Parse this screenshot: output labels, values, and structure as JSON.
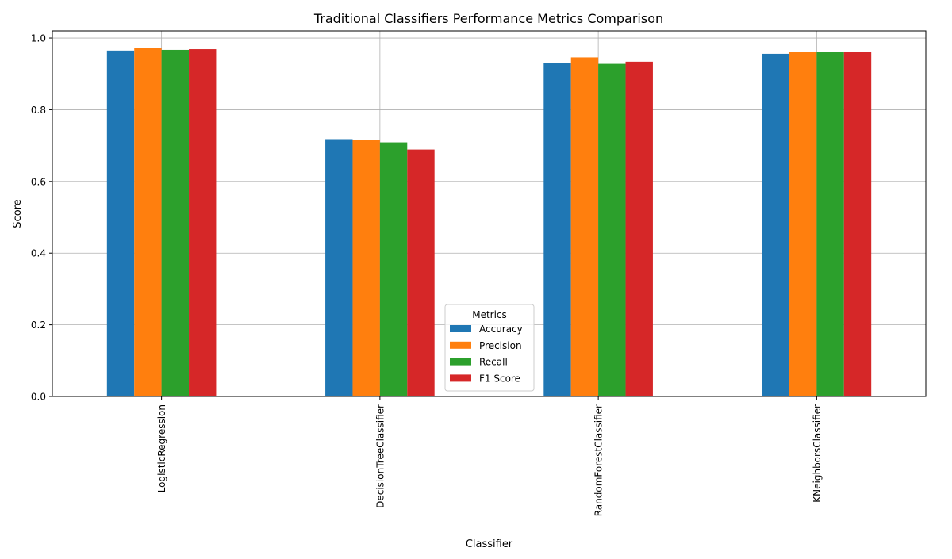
{
  "chart_data": {
    "type": "bar",
    "title": "Traditional Classifiers Performance Metrics Comparison",
    "xlabel": "Classifier",
    "ylabel": "Score",
    "categories": [
      "LogisticRegression",
      "DecisionTreeClassifier",
      "RandomForestClassifier",
      "KNeighborsClassifier"
    ],
    "series": [
      {
        "name": "Accuracy",
        "color": "#1f77b4",
        "values": [
          0.965,
          0.718,
          0.93,
          0.956
        ]
      },
      {
        "name": "Precision",
        "color": "#ff7f0e",
        "values": [
          0.972,
          0.716,
          0.946,
          0.961
        ]
      },
      {
        "name": "Recall",
        "color": "#2ca02c",
        "values": [
          0.967,
          0.709,
          0.928,
          0.961
        ]
      },
      {
        "name": "F1 Score",
        "color": "#d62728",
        "values": [
          0.969,
          0.689,
          0.934,
          0.961
        ]
      }
    ],
    "ylim": [
      0,
      1.02
    ],
    "yticks": [
      "0.0",
      "0.2",
      "0.4",
      "0.6",
      "0.8",
      "1.0"
    ],
    "grid": true,
    "legend": {
      "title": "Metrics",
      "placement": "lower-center"
    }
  }
}
